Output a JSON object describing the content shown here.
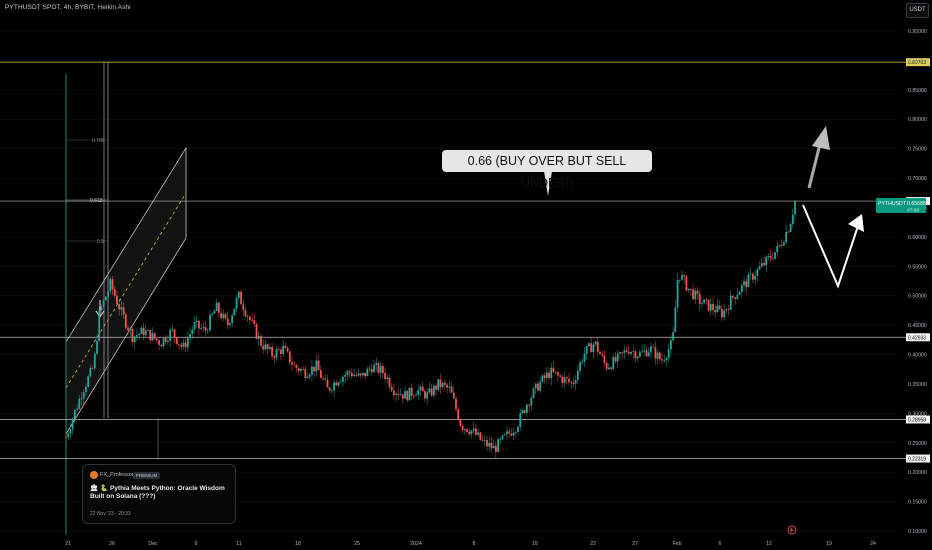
{
  "header": {
    "title": "PYTHUSDT SPOT, 4h, BYBIT, Heikin Ashi"
  },
  "currency_button": "USDT",
  "callout": {
    "text": "0.66 (BUY OVER BUT SELL UNDER!)"
  },
  "idea_card": {
    "author": "FX_Professor",
    "badge": "PREMIUM",
    "title": "🏛 🐍 Pythia Meets Python: Oracle Wisdom Built on Solana (???)",
    "date": "22 Nov '23 · 20:33"
  },
  "colors": {
    "up": "#26a69a",
    "down": "#ef5350",
    "accent_line": "#e0cf4a",
    "level_line": "#b9b9b9",
    "price_tag": "#089981"
  },
  "chart_data": {
    "type": "candlestick",
    "title": "PYTHUSDT SPOT, 4h, BYBIT, Heikin Ashi",
    "y_ticks": [
      "0.95000",
      "0.90000",
      "0.85000",
      "0.80000",
      "0.75000",
      "0.70000",
      "0.65000",
      "0.60000",
      "0.55000",
      "0.50000",
      "0.45000",
      "0.40000",
      "0.35000",
      "0.30000",
      "0.25000",
      "0.20000",
      "0.15000",
      "0.10000"
    ],
    "ylim": [
      0.1,
      0.97
    ],
    "x_ticks": [
      "21",
      "26",
      "Dec",
      "6",
      "11",
      "18",
      "25",
      "2024",
      "8",
      "15",
      "22",
      "27",
      "Feb",
      "6",
      "12",
      "19",
      "24"
    ],
    "horizontal_levels": [
      {
        "value": 0.89703,
        "label": "0.89703",
        "style": "yellow"
      },
      {
        "value": 0.66092,
        "label": "0.66092",
        "style": "grey"
      },
      {
        "value": 0.42933,
        "label": "0.42933",
        "style": "grey"
      },
      {
        "value": 0.28958,
        "label": "0.28958",
        "style": "grey"
      },
      {
        "value": 0.22319,
        "label": "0.22319",
        "style": "grey"
      }
    ],
    "last_price": {
      "symbol": "PYTHUSDT",
      "value": "0.65688",
      "countdown": "47:08"
    },
    "fib_labels": [
      "0.786",
      "0.618",
      "0.5"
    ],
    "path_points": [
      [
        0,
        0.26
      ],
      [
        3,
        0.34
      ],
      [
        5,
        0.38
      ],
      [
        6,
        0.47
      ],
      [
        8,
        0.52
      ],
      [
        10,
        0.47
      ],
      [
        12,
        0.43
      ],
      [
        14,
        0.44
      ],
      [
        17,
        0.42
      ],
      [
        19,
        0.44
      ],
      [
        21,
        0.41
      ],
      [
        23,
        0.45
      ],
      [
        25,
        0.44
      ],
      [
        27,
        0.48
      ],
      [
        29,
        0.45
      ],
      [
        31,
        0.5
      ],
      [
        33,
        0.46
      ],
      [
        35,
        0.42
      ],
      [
        37,
        0.4
      ],
      [
        39,
        0.41
      ],
      [
        41,
        0.38
      ],
      [
        43,
        0.37
      ],
      [
        45,
        0.38
      ],
      [
        47,
        0.34
      ],
      [
        49,
        0.36
      ],
      [
        51,
        0.37
      ],
      [
        53,
        0.36
      ],
      [
        55,
        0.38
      ],
      [
        57,
        0.37
      ],
      [
        59,
        0.34
      ],
      [
        61,
        0.33
      ],
      [
        63,
        0.34
      ],
      [
        65,
        0.33
      ],
      [
        67,
        0.35
      ],
      [
        69,
        0.34
      ],
      [
        71,
        0.28
      ],
      [
        73,
        0.27
      ],
      [
        75,
        0.25
      ],
      [
        77,
        0.24
      ],
      [
        79,
        0.26
      ],
      [
        81,
        0.28
      ],
      [
        83,
        0.32
      ],
      [
        85,
        0.35
      ],
      [
        87,
        0.37
      ],
      [
        89,
        0.36
      ],
      [
        91,
        0.35
      ],
      [
        93,
        0.4
      ],
      [
        95,
        0.42
      ],
      [
        97,
        0.38
      ],
      [
        99,
        0.39
      ],
      [
        101,
        0.41
      ],
      [
        103,
        0.4
      ],
      [
        105,
        0.41
      ],
      [
        107,
        0.39
      ],
      [
        109,
        0.42
      ],
      [
        110,
        0.54
      ],
      [
        112,
        0.51
      ],
      [
        114,
        0.49
      ],
      [
        116,
        0.48
      ],
      [
        118,
        0.47
      ],
      [
        120,
        0.5
      ],
      [
        122,
        0.52
      ],
      [
        124,
        0.54
      ],
      [
        126,
        0.56
      ],
      [
        128,
        0.58
      ],
      [
        130,
        0.62
      ],
      [
        131,
        0.66
      ]
    ]
  }
}
